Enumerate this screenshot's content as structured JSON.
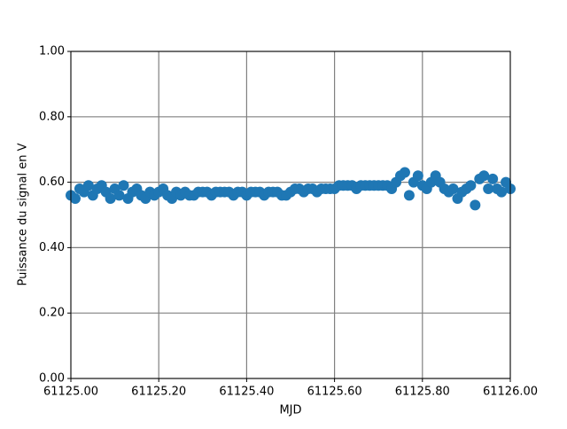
{
  "chart_data": {
    "type": "scatter",
    "x_label": "MJD",
    "y_label": "Puissance du signal en V",
    "color": "#1f77b4",
    "grid": true,
    "xlim": [
      61125.0,
      61126.0
    ],
    "ylim": [
      0.0,
      1.0
    ],
    "xticks": [
      {
        "value": 61125.0,
        "label": "61125.00"
      },
      {
        "value": 61125.2,
        "label": "61125.20"
      },
      {
        "value": 61125.4,
        "label": "61125.40"
      },
      {
        "value": 61125.6,
        "label": "61125.60"
      },
      {
        "value": 61125.8,
        "label": "61125.80"
      },
      {
        "value": 61126.0,
        "label": "61126.00"
      }
    ],
    "yticks": [
      {
        "value": 0.0,
        "label": "0.00"
      },
      {
        "value": 0.2,
        "label": "0.20"
      },
      {
        "value": 0.4,
        "label": "0.40"
      },
      {
        "value": 0.6,
        "label": "0.60"
      },
      {
        "value": 0.8,
        "label": "0.80"
      },
      {
        "value": 1.0,
        "label": "1.00"
      }
    ],
    "x": [
      61125.0,
      61125.01,
      61125.02,
      61125.03,
      61125.04,
      61125.05,
      61125.06,
      61125.07,
      61125.08,
      61125.09,
      61125.1,
      61125.11,
      61125.12,
      61125.13,
      61125.14,
      61125.15,
      61125.16,
      61125.17,
      61125.18,
      61125.19,
      61125.2,
      61125.21,
      61125.22,
      61125.23,
      61125.24,
      61125.25,
      61125.26,
      61125.27,
      61125.28,
      61125.29,
      61125.3,
      61125.31,
      61125.32,
      61125.33,
      61125.34,
      61125.35,
      61125.36,
      61125.37,
      61125.38,
      61125.39,
      61125.4,
      61125.41,
      61125.42,
      61125.43,
      61125.44,
      61125.45,
      61125.46,
      61125.47,
      61125.48,
      61125.49,
      61125.5,
      61125.51,
      61125.52,
      61125.53,
      61125.54,
      61125.55,
      61125.56,
      61125.57,
      61125.58,
      61125.59,
      61125.6,
      61125.61,
      61125.62,
      61125.63,
      61125.64,
      61125.65,
      61125.66,
      61125.67,
      61125.68,
      61125.69,
      61125.7,
      61125.71,
      61125.72,
      61125.73,
      61125.74,
      61125.75,
      61125.76,
      61125.77,
      61125.78,
      61125.79,
      61125.8,
      61125.81,
      61125.82,
      61125.83,
      61125.84,
      61125.85,
      61125.86,
      61125.87,
      61125.88,
      61125.89,
      61125.9,
      61125.91,
      61125.92,
      61125.93,
      61125.94,
      61125.95,
      61125.96,
      61125.97,
      61125.98,
      61125.99,
      61126.0
    ],
    "values": [
      0.56,
      0.55,
      0.58,
      0.57,
      0.59,
      0.56,
      0.58,
      0.59,
      0.57,
      0.55,
      0.58,
      0.56,
      0.59,
      0.55,
      0.57,
      0.58,
      0.56,
      0.55,
      0.57,
      0.56,
      0.57,
      0.58,
      0.56,
      0.55,
      0.57,
      0.56,
      0.57,
      0.56,
      0.56,
      0.57,
      0.57,
      0.57,
      0.56,
      0.57,
      0.57,
      0.57,
      0.57,
      0.56,
      0.57,
      0.57,
      0.56,
      0.57,
      0.57,
      0.57,
      0.56,
      0.57,
      0.57,
      0.57,
      0.56,
      0.56,
      0.57,
      0.58,
      0.58,
      0.57,
      0.58,
      0.58,
      0.57,
      0.58,
      0.58,
      0.58,
      0.58,
      0.59,
      0.59,
      0.59,
      0.59,
      0.58,
      0.59,
      0.59,
      0.59,
      0.59,
      0.59,
      0.59,
      0.59,
      0.58,
      0.6,
      0.62,
      0.63,
      0.56,
      0.6,
      0.62,
      0.59,
      0.58,
      0.6,
      0.62,
      0.6,
      0.58,
      0.57,
      0.58,
      0.55,
      0.57,
      0.58,
      0.59,
      0.53,
      0.61,
      0.62,
      0.58,
      0.61,
      0.58,
      0.57,
      0.6,
      0.58
    ]
  }
}
